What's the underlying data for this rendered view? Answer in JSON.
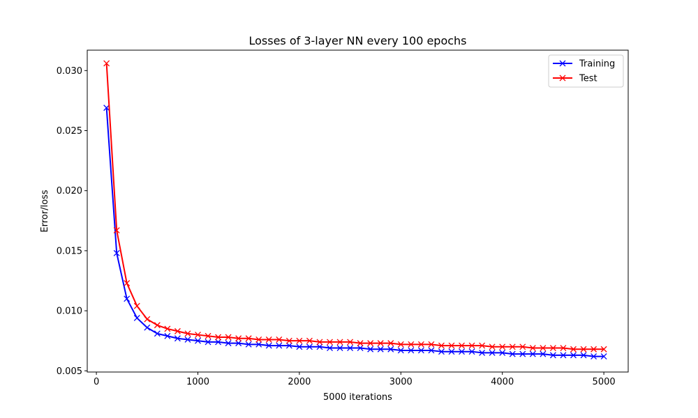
{
  "chart_data": {
    "type": "line",
    "title": "Losses of 3-layer NN every 100 epochs",
    "xlabel": "5000 iterations",
    "ylabel": "Error/loss",
    "xlim": [
      -90,
      5240
    ],
    "ylim": [
      0.0049,
      0.0317
    ],
    "xticks": [
      0,
      1000,
      2000,
      3000,
      4000,
      5000
    ],
    "xtick_labels": [
      "0",
      "1000",
      "2000",
      "3000",
      "4000",
      "5000"
    ],
    "yticks": [
      0.005,
      0.01,
      0.015,
      0.02,
      0.025,
      0.03
    ],
    "ytick_labels": [
      "0.005",
      "0.010",
      "0.015",
      "0.020",
      "0.025",
      "0.030"
    ],
    "grid": false,
    "legend_position": "top-right",
    "marker": "x",
    "x": [
      100,
      200,
      300,
      400,
      500,
      600,
      700,
      800,
      900,
      1000,
      1100,
      1200,
      1300,
      1400,
      1500,
      1600,
      1700,
      1800,
      1900,
      2000,
      2100,
      2200,
      2300,
      2400,
      2500,
      2600,
      2700,
      2800,
      2900,
      3000,
      3100,
      3200,
      3300,
      3400,
      3500,
      3600,
      3700,
      3800,
      3900,
      4000,
      4100,
      4200,
      4300,
      4400,
      4500,
      4600,
      4700,
      4800,
      4900,
      5000
    ],
    "series": [
      {
        "name": "Training",
        "color": "#0000ff",
        "values": [
          0.0269,
          0.0148,
          0.011,
          0.0094,
          0.0086,
          0.0081,
          0.0079,
          0.0077,
          0.0076,
          0.0075,
          0.0074,
          0.0074,
          0.0073,
          0.0073,
          0.0072,
          0.0072,
          0.0071,
          0.0071,
          0.0071,
          0.007,
          0.007,
          0.007,
          0.0069,
          0.0069,
          0.0069,
          0.0069,
          0.0068,
          0.0068,
          0.0068,
          0.0067,
          0.0067,
          0.0067,
          0.0067,
          0.0066,
          0.0066,
          0.0066,
          0.0066,
          0.0065,
          0.0065,
          0.0065,
          0.0064,
          0.0064,
          0.0064,
          0.0064,
          0.0063,
          0.0063,
          0.0063,
          0.0063,
          0.0062,
          0.0062
        ]
      },
      {
        "name": "Test",
        "color": "#ff0000",
        "values": [
          0.0306,
          0.0167,
          0.0123,
          0.0104,
          0.0093,
          0.0088,
          0.0085,
          0.0083,
          0.0081,
          0.008,
          0.0079,
          0.0078,
          0.0078,
          0.0077,
          0.0077,
          0.0076,
          0.0076,
          0.0076,
          0.0075,
          0.0075,
          0.0075,
          0.0074,
          0.0074,
          0.0074,
          0.0074,
          0.0073,
          0.0073,
          0.0073,
          0.0073,
          0.0072,
          0.0072,
          0.0072,
          0.0072,
          0.0071,
          0.0071,
          0.0071,
          0.0071,
          0.0071,
          0.007,
          0.007,
          0.007,
          0.007,
          0.0069,
          0.0069,
          0.0069,
          0.0069,
          0.0068,
          0.0068,
          0.0068,
          0.0068
        ]
      }
    ]
  }
}
